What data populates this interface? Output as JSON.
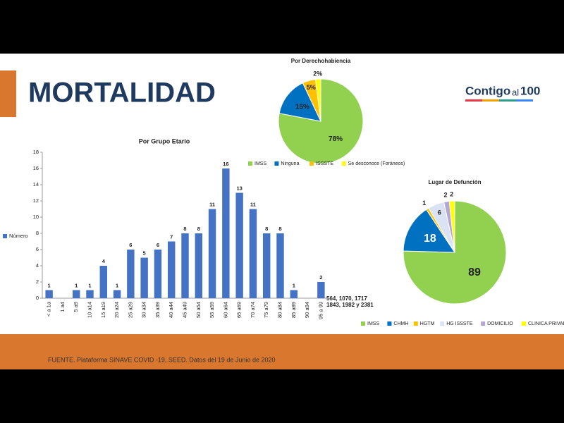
{
  "header": {
    "title": "MORTALIDAD",
    "logo": [
      "Contigo",
      "al",
      "100"
    ]
  },
  "footer": {
    "source": "FUENTE. Plataforma SINAVE COVID -19, SEED. Datos del 19 de Junio de 2020"
  },
  "chart_data": [
    {
      "type": "bar",
      "title": "Por Grupo Etario",
      "categories": [
        "< a 1a",
        "1 a4",
        "5 a9",
        "10 a14",
        "15 a19",
        "20 a24",
        "25 a29",
        "30 a34",
        "35 a39",
        "40 a44",
        "45 a49",
        "50 a54",
        "55 a59",
        "60 a64",
        "65 a69",
        "70 a74",
        "75 a79",
        "80 a84",
        "85 a89",
        "90 a94",
        "95 a 99"
      ],
      "series": [
        {
          "name": "Número",
          "color": "#4472c4",
          "values": [
            1,
            null,
            1,
            1,
            4,
            1,
            6,
            5,
            6,
            7,
            8,
            8,
            11,
            16,
            13,
            11,
            8,
            8,
            1,
            null,
            2
          ]
        }
      ],
      "ylim": [
        0,
        18
      ],
      "yticks": [
        0,
        2,
        4,
        6,
        8,
        10,
        12,
        14,
        16,
        18
      ],
      "grid": false,
      "legend": "left",
      "annotations": [
        "564, 1070, 1717",
        "1843, 1982 y 2381"
      ]
    },
    {
      "type": "pie",
      "title": "Por Derechohabiencia",
      "categories": [
        "IMSS",
        "Ninguna",
        "ISSSTE",
        "Se desconoce (Foráneos)"
      ],
      "values": [
        78,
        15,
        5,
        2
      ],
      "value_labels": [
        "78%",
        "15%",
        "5%",
        "2%"
      ],
      "colors": [
        "#92d050",
        "#0070c0",
        "#ffc000",
        "#ffff00"
      ],
      "legend": "bottom"
    },
    {
      "type": "pie",
      "title": "Lugar de Defunción",
      "categories": [
        "IMSS",
        "CHMH",
        "HGTM",
        "HG ISSSTE",
        "DOMICILIO",
        "CLINICA PRIVADA"
      ],
      "values": [
        89,
        18,
        1,
        6,
        2,
        2
      ],
      "colors": [
        "#92d050",
        "#0070c0",
        "#ffc000",
        "#dae3f3",
        "#b4a7d6",
        "#ffff00"
      ],
      "legend": "bottom"
    }
  ]
}
